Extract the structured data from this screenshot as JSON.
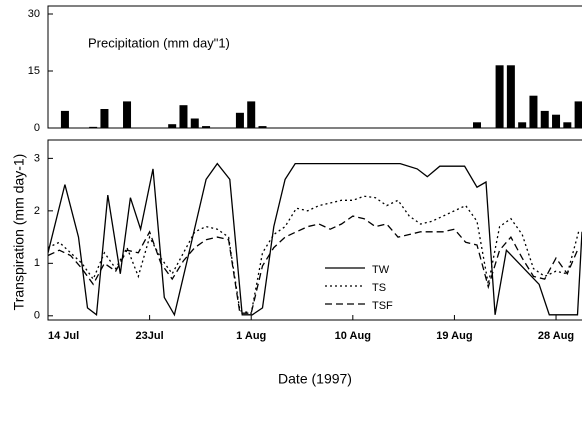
{
  "chart_data": [
    {
      "type": "bar",
      "title": "Precipitation (mm day\"1)",
      "color": "#000000",
      "x": [
        1.5,
        4,
        5,
        7,
        11,
        12,
        13,
        14,
        17,
        18,
        19,
        38,
        40,
        41,
        42,
        43,
        44,
        45,
        46,
        47
      ],
      "values": [
        4.5,
        0.3,
        5,
        7,
        1,
        6,
        2.5,
        0.5,
        4,
        7,
        0.5,
        1.5,
        16.5,
        16.5,
        1.5,
        8.5,
        4.5,
        3.5,
        1.5,
        7
      ],
      "xlim": [
        0,
        47.3
      ],
      "ylim": [
        0,
        30
      ],
      "yticks": [
        0,
        15,
        30
      ]
    },
    {
      "type": "line",
      "xlabel": "Date (1997)",
      "ylabel": "Transpiration (mm day-1)",
      "xlim": [
        0,
        47.3
      ],
      "ylim": [
        -0.08,
        3.35
      ],
      "yticks": [
        0,
        1,
        2,
        3
      ],
      "xticks": [
        {
          "value": 0,
          "label": "14 Jul"
        },
        {
          "value": 9,
          "label": "23Jul"
        },
        {
          "value": 18,
          "label": "1 Aug"
        },
        {
          "value": 27,
          "label": "10 Aug"
        },
        {
          "value": 36,
          "label": "19 Aug"
        },
        {
          "value": 45,
          "label": "28 Aug"
        }
      ],
      "series": [
        {
          "name": "TW",
          "color": "#000000",
          "dash": "none",
          "x": [
            0,
            1.5,
            2.7,
            3.5,
            4.3,
            5.3,
            6.4,
            7.3,
            8.2,
            9.3,
            10.3,
            11.2,
            12.6,
            14,
            15,
            16.1,
            17.2,
            18.1,
            19,
            20,
            21,
            21.9,
            31.2,
            32.7,
            33.6,
            34.7,
            36.9,
            38,
            38.8,
            39.6,
            40.6,
            43.5,
            44.4,
            46.9,
            47.3
          ],
          "values": [
            1.2,
            2.5,
            1.5,
            0.15,
            0.02,
            2.3,
            0.8,
            2.25,
            1.65,
            2.8,
            0.35,
            0.02,
            1.3,
            2.6,
            2.9,
            2.6,
            0.02,
            0.02,
            0.15,
            1.7,
            2.6,
            2.9,
            2.9,
            2.8,
            2.65,
            2.85,
            2.85,
            2.45,
            2.55,
            0.02,
            1.25,
            0.6,
            0.02,
            0.02,
            1.6
          ]
        },
        {
          "name": "TS",
          "color": "#000000",
          "dash": "2,3",
          "x": [
            0,
            1,
            2,
            3,
            4,
            5,
            6,
            7,
            8,
            9,
            10,
            11,
            12,
            13,
            14,
            15,
            16,
            17,
            18,
            19,
            20,
            21,
            22,
            23,
            24,
            25,
            26,
            27,
            28,
            29,
            30,
            31,
            32,
            33,
            34,
            35,
            36,
            37,
            38,
            39,
            40,
            41,
            42,
            43,
            44,
            45,
            46,
            47
          ],
          "values": [
            1.3,
            1.4,
            1.2,
            1.0,
            0.7,
            1.2,
            0.9,
            1.3,
            0.75,
            1.5,
            1.1,
            0.8,
            1.2,
            1.6,
            1.7,
            1.65,
            1.5,
            0.1,
            0.05,
            1.2,
            1.55,
            1.7,
            2.05,
            2.0,
            2.1,
            2.15,
            2.2,
            2.2,
            2.28,
            2.25,
            2.1,
            2.2,
            1.9,
            1.75,
            1.8,
            1.9,
            2.0,
            2.1,
            1.8,
            0.6,
            1.7,
            1.85,
            1.55,
            0.9,
            0.75,
            0.85,
            0.8,
            1.6
          ]
        },
        {
          "name": "TSF",
          "color": "#000000",
          "dash": "7,4",
          "x": [
            0,
            1,
            2,
            3,
            4,
            5,
            6,
            7,
            8,
            9,
            10,
            11,
            12,
            13,
            14,
            15,
            16,
            17,
            18,
            19,
            20,
            21,
            22,
            23,
            24,
            25,
            26,
            27,
            28,
            29,
            30,
            31,
            32,
            33,
            34,
            35,
            36,
            37,
            38,
            39,
            40,
            41,
            42,
            43,
            44,
            45,
            46,
            47
          ],
          "values": [
            1.15,
            1.25,
            1.15,
            0.9,
            0.6,
            1.0,
            0.85,
            1.25,
            1.2,
            1.6,
            1.0,
            0.7,
            1.05,
            1.3,
            1.45,
            1.5,
            1.45,
            0.05,
            0.05,
            0.95,
            1.3,
            1.5,
            1.6,
            1.7,
            1.75,
            1.65,
            1.75,
            1.9,
            1.85,
            1.7,
            1.75,
            1.5,
            1.55,
            1.6,
            1.6,
            1.6,
            1.65,
            1.4,
            1.35,
            0.55,
            1.25,
            1.5,
            1.1,
            0.75,
            0.7,
            1.1,
            0.8,
            1.3
          ]
        }
      ]
    }
  ]
}
